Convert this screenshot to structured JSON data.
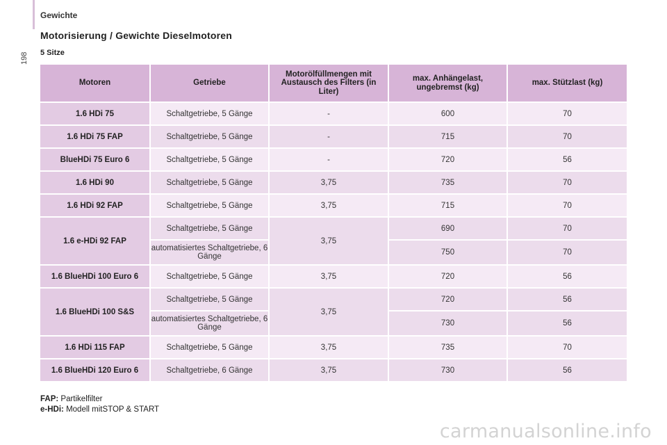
{
  "header": {
    "section": "Gewichte",
    "page_number": "198"
  },
  "title": "Motorisierung / Gewichte Dieselmotoren",
  "subtitle": "5 Sitze",
  "table": {
    "columns": [
      "Motoren",
      "Getriebe",
      "Motorölfüllmengen mit Austausch des Filters (in Liter)",
      "max. Anhängelast, ungebremst (kg)",
      "max. Stützlast (kg)"
    ],
    "rows": [
      {
        "engine": "1.6 HDi 75",
        "gear": "Schaltgetriebe, 5 Gänge",
        "oil": "-",
        "trailer": "600",
        "support": "70"
      },
      {
        "engine": "1.6 HDi 75 FAP",
        "gear": "Schaltgetriebe, 5 Gänge",
        "oil": "-",
        "trailer": "715",
        "support": "70"
      },
      {
        "engine": "BlueHDi 75 Euro 6",
        "gear": "Schaltgetriebe, 5 Gänge",
        "oil": "-",
        "trailer": "720",
        "support": "56"
      },
      {
        "engine": "1.6 HDi 90",
        "gear": "Schaltgetriebe, 5 Gänge",
        "oil": "3,75",
        "trailer": "735",
        "support": "70"
      },
      {
        "engine": "1.6 HDi 92 FAP",
        "gear": "Schaltgetriebe, 5 Gänge",
        "oil": "3,75",
        "trailer": "715",
        "support": "70"
      },
      {
        "engine": "1.6 e-HDi 92 FAP",
        "gear": "Schaltgetriebe, 5 Gänge",
        "gear2": "automatisiertes Schaltgetriebe, 6 Gänge",
        "oil": "3,75",
        "trailer": "690",
        "support": "70",
        "trailer2": "750",
        "support2": "70"
      },
      {
        "engine": "1.6 BlueHDi 100 Euro 6",
        "gear": "Schaltgetriebe, 5 Gänge",
        "oil": "3,75",
        "trailer": "720",
        "support": "56"
      },
      {
        "engine": "1.6 BlueHDi 100 S&S",
        "gear": "Schaltgetriebe, 5 Gänge",
        "gear2": "automatisiertes Schaltgetriebe, 6 Gänge",
        "oil": "3,75",
        "trailer": "720",
        "support": "56",
        "trailer2": "730",
        "support2": "56"
      },
      {
        "engine": "1.6 HDi 115 FAP",
        "gear": "Schaltgetriebe, 5 Gänge",
        "oil": "3,75",
        "trailer": "735",
        "support": "70"
      },
      {
        "engine": "1.6 BlueHDi 120 Euro 6",
        "gear": "Schaltgetriebe, 6 Gänge",
        "oil": "3,75",
        "trailer": "730",
        "support": "56"
      }
    ]
  },
  "footnotes": [
    {
      "term": "FAP:",
      "text": " Partikelfilter"
    },
    {
      "term": "e-HDi:",
      "text": " Modell mitSTOP & START"
    }
  ],
  "watermark": "carmanualsonline.info",
  "colors": {
    "header_bg": "#d7b4d7",
    "engine_bg": "#e3cbe3",
    "row_light": "#f5eaf5",
    "row_dark": "#ecdcec"
  }
}
